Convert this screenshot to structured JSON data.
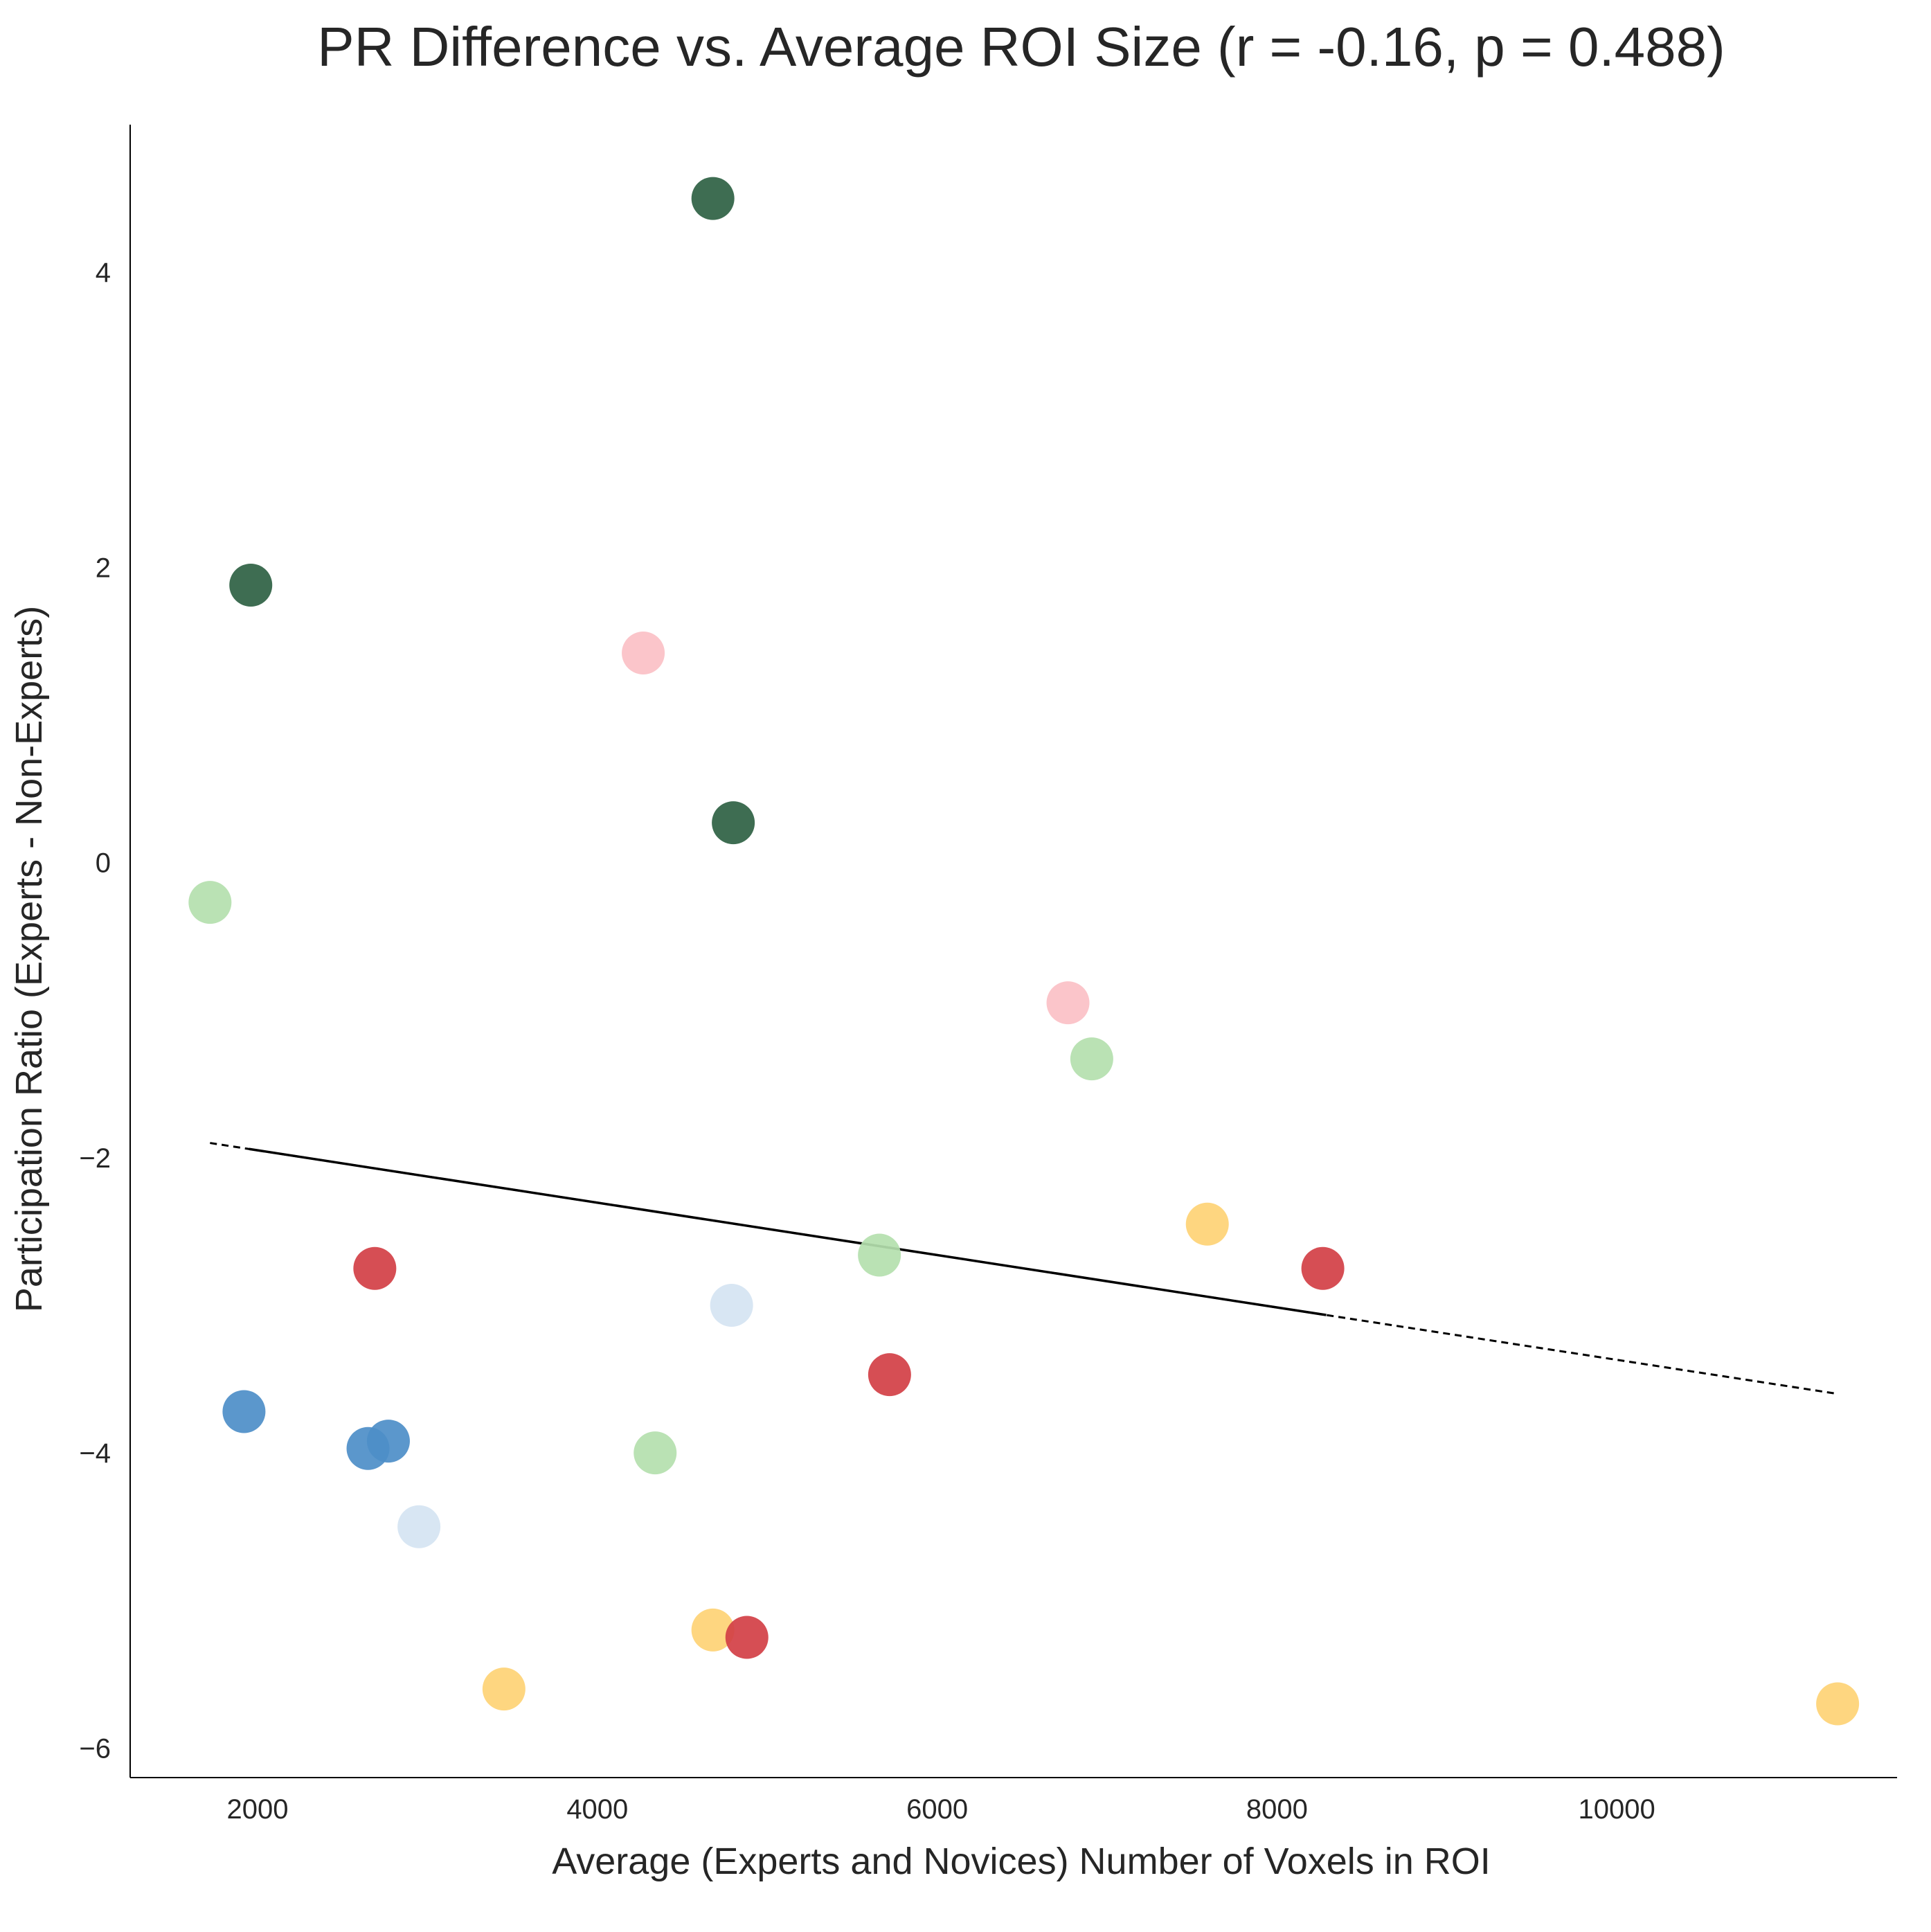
{
  "chart_data": {
    "type": "scatter",
    "title": "PR Difference vs. Average ROI Size (r = -0.16, p = 0.488)",
    "xlabel": "Average (Experts and Novices) Number of Voxels in ROI",
    "ylabel": "Participation Ratio (Experts - Non-Experts)",
    "xlim": [
      1250,
      11650
    ],
    "ylim": [
      -6.2,
      5.0
    ],
    "xticks": [
      2000,
      4000,
      6000,
      8000,
      10000
    ],
    "xtick_labels": [
      "2000",
      "4000",
      "6000",
      "8000",
      "10000"
    ],
    "yticks": [
      -6,
      -4,
      -2,
      0,
      2,
      4
    ],
    "ytick_labels": [
      "−6",
      "−4",
      "−2",
      "0",
      "2",
      "4"
    ],
    "grid": false,
    "fit_line": {
      "x_start": 1720,
      "y_start": -1.9,
      "x_end": 11300,
      "y_end": -3.6,
      "solid_x_range": [
        1950,
        8290
      ],
      "style": "dashed outside data range, solid inside"
    },
    "points": [
      {
        "x": 4680,
        "y": 4.5,
        "color": "#2e6143"
      },
      {
        "x": 1960,
        "y": 1.88,
        "color": "#2e6143"
      },
      {
        "x": 4800,
        "y": 0.27,
        "color": "#2e6143"
      },
      {
        "x": 4270,
        "y": 1.42,
        "color": "#fbc0c6"
      },
      {
        "x": 6770,
        "y": -0.95,
        "color": "#fbc0c6"
      },
      {
        "x": 1720,
        "y": -0.27,
        "color": "#b4e0ae"
      },
      {
        "x": 6910,
        "y": -1.33,
        "color": "#b4e0ae"
      },
      {
        "x": 5660,
        "y": -2.66,
        "color": "#b4e0ae"
      },
      {
        "x": 4340,
        "y": -4.0,
        "color": "#b4e0ae"
      },
      {
        "x": 7590,
        "y": -2.45,
        "color": "#fed275"
      },
      {
        "x": 4680,
        "y": -5.2,
        "color": "#fed275"
      },
      {
        "x": 3450,
        "y": -5.6,
        "color": "#fed275"
      },
      {
        "x": 11300,
        "y": -5.7,
        "color": "#fed275"
      },
      {
        "x": 2690,
        "y": -2.75,
        "color": "#d33f45"
      },
      {
        "x": 8270,
        "y": -2.75,
        "color": "#d33f45"
      },
      {
        "x": 5720,
        "y": -3.47,
        "color": "#d33f45"
      },
      {
        "x": 4880,
        "y": -5.25,
        "color": "#d33f45"
      },
      {
        "x": 4790,
        "y": -3.0,
        "color": "#d5e4f2"
      },
      {
        "x": 2950,
        "y": -4.5,
        "color": "#d5e4f2"
      },
      {
        "x": 1920,
        "y": -3.72,
        "color": "#4d8ec8"
      },
      {
        "x": 2650,
        "y": -3.97,
        "color": "#4d8ec8"
      },
      {
        "x": 2770,
        "y": -3.92,
        "color": "#4d8ec8"
      }
    ]
  }
}
